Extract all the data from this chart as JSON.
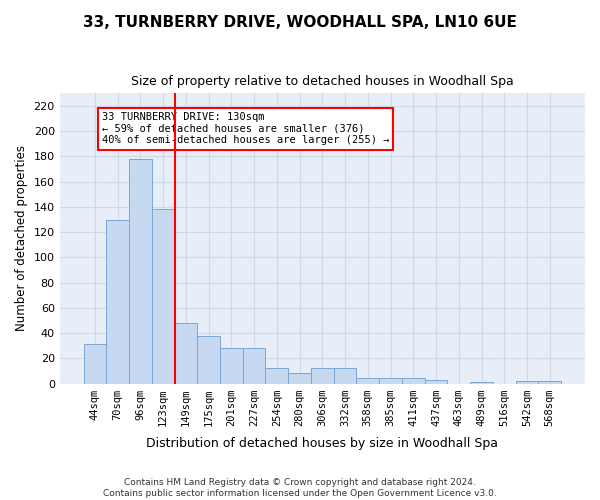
{
  "title": "33, TURNBERRY DRIVE, WOODHALL SPA, LN10 6UE",
  "subtitle": "Size of property relative to detached houses in Woodhall Spa",
  "xlabel": "Distribution of detached houses by size in Woodhall Spa",
  "ylabel": "Number of detached properties",
  "footnote1": "Contains HM Land Registry data © Crown copyright and database right 2024.",
  "footnote2": "Contains public sector information licensed under the Open Government Licence v3.0.",
  "bar_labels": [
    "44sqm",
    "70sqm",
    "96sqm",
    "123sqm",
    "149sqm",
    "175sqm",
    "201sqm",
    "227sqm",
    "254sqm",
    "280sqm",
    "306sqm",
    "332sqm",
    "358sqm",
    "385sqm",
    "411sqm",
    "437sqm",
    "463sqm",
    "489sqm",
    "516sqm",
    "542sqm",
    "568sqm"
  ],
  "bar_values": [
    31,
    130,
    178,
    138,
    48,
    38,
    28,
    28,
    12,
    8,
    12,
    12,
    4,
    4,
    4,
    3,
    0,
    1,
    0,
    2,
    2
  ],
  "bar_color": "#c6d9f0",
  "bar_edge_color": "#7ba7d4",
  "grid_color": "#d0d8e8",
  "background_color": "#e8eef8",
  "property_line_color": "red",
  "annotation_line1": "33 TURNBERRY DRIVE: 130sqm",
  "annotation_line2": "← 59% of detached houses are smaller (376)",
  "annotation_line3": "40% of semi-detached houses are larger (255) →",
  "annotation_box_color": "white",
  "annotation_box_edge": "red",
  "ylim": [
    0,
    230
  ],
  "yticks": [
    0,
    20,
    40,
    60,
    80,
    100,
    120,
    140,
    160,
    180,
    200,
    220
  ]
}
